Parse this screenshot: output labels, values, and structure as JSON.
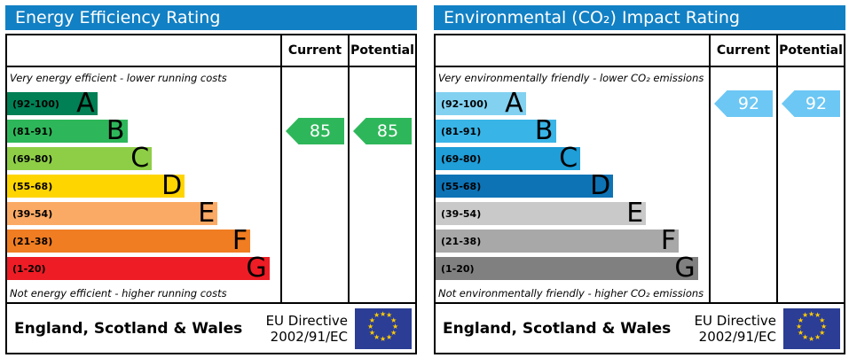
{
  "eu_flag": {
    "star_glyph": "★",
    "blue": "#2b3d94",
    "star_color": "#ffcc00"
  },
  "panels": [
    {
      "title": "Energy Efficiency Rating",
      "title_bg": "#1280c4",
      "columns": {
        "current": "Current",
        "potential": "Potential"
      },
      "top_note": "Very energy efficient - lower running costs",
      "bottom_note": "Not energy efficient - higher running costs",
      "bands": [
        {
          "range": "(92-100)",
          "letter": "A",
          "min": 92,
          "max": 100,
          "color": "#008054",
          "width_pct": 33
        },
        {
          "range": "(81-91)",
          "letter": "B",
          "min": 81,
          "max": 91,
          "color": "#2eb75a",
          "width_pct": 44
        },
        {
          "range": "(69-80)",
          "letter": "C",
          "min": 69,
          "max": 80,
          "color": "#8ece46",
          "width_pct": 53
        },
        {
          "range": "(55-68)",
          "letter": "D",
          "min": 55,
          "max": 68,
          "color": "#ffd500",
          "width_pct": 65
        },
        {
          "range": "(39-54)",
          "letter": "E",
          "min": 39,
          "max": 54,
          "color": "#fbaa65",
          "width_pct": 77
        },
        {
          "range": "(21-38)",
          "letter": "F",
          "min": 21,
          "max": 38,
          "color": "#f07d22",
          "width_pct": 89
        },
        {
          "range": "(1-20)",
          "letter": "G",
          "min": 1,
          "max": 20,
          "color": "#ee1c25",
          "width_pct": 96
        }
      ],
      "current": {
        "value": 85,
        "color": "#2eb75a"
      },
      "potential": {
        "value": 85,
        "color": "#2eb75a"
      },
      "footer": {
        "region": "England, Scotland & Wales",
        "directive_line1": "EU Directive",
        "directive_line2": "2002/91/EC"
      }
    },
    {
      "title": "Environmental (CO₂) Impact Rating",
      "title_bg": "#1280c4",
      "columns": {
        "current": "Current",
        "potential": "Potential"
      },
      "top_note": "Very environmentally friendly - lower CO₂ emissions",
      "bottom_note": "Not environmentally friendly - higher CO₂ emissions",
      "bands": [
        {
          "range": "(92-100)",
          "letter": "A",
          "min": 92,
          "max": 100,
          "color": "#82d1f1",
          "width_pct": 33
        },
        {
          "range": "(81-91)",
          "letter": "B",
          "min": 81,
          "max": 91,
          "color": "#39b4e6",
          "width_pct": 44
        },
        {
          "range": "(69-80)",
          "letter": "C",
          "min": 69,
          "max": 80,
          "color": "#1f9ed8",
          "width_pct": 53
        },
        {
          "range": "(55-68)",
          "letter": "D",
          "min": 55,
          "max": 68,
          "color": "#0d73b5",
          "width_pct": 65
        },
        {
          "range": "(39-54)",
          "letter": "E",
          "min": 39,
          "max": 54,
          "color": "#c9c9c9",
          "width_pct": 77
        },
        {
          "range": "(21-38)",
          "letter": "F",
          "min": 21,
          "max": 38,
          "color": "#a8a8a8",
          "width_pct": 89
        },
        {
          "range": "(1-20)",
          "letter": "G",
          "min": 1,
          "max": 20,
          "color": "#808080",
          "width_pct": 96
        }
      ],
      "current": {
        "value": 92,
        "color": "#6cc7f4"
      },
      "potential": {
        "value": 92,
        "color": "#6cc7f4"
      },
      "footer": {
        "region": "England, Scotland & Wales",
        "directive_line1": "EU Directive",
        "directive_line2": "2002/91/EC"
      }
    }
  ],
  "chart_data": [
    {
      "type": "bar",
      "title": "Energy Efficiency Rating",
      "categories": [
        "A (92-100)",
        "B (81-91)",
        "C (69-80)",
        "D (55-68)",
        "E (39-54)",
        "F (21-38)",
        "G (1-20)"
      ],
      "band_bar_length_pct": [
        33,
        44,
        53,
        65,
        77,
        89,
        96
      ],
      "series": [
        {
          "name": "Current",
          "values": [
            85
          ],
          "band": "B"
        },
        {
          "name": "Potential",
          "values": [
            85
          ],
          "band": "B"
        }
      ],
      "annotations": [
        "Very energy efficient - lower running costs",
        "Not energy efficient - higher running costs",
        "England, Scotland & Wales",
        "EU Directive 2002/91/EC"
      ],
      "xlabel": "",
      "ylabel": "",
      "legend_position": "table-columns-right",
      "grid": false
    },
    {
      "type": "bar",
      "title": "Environmental (CO₂) Impact Rating",
      "categories": [
        "A (92-100)",
        "B (81-91)",
        "C (69-80)",
        "D (55-68)",
        "E (39-54)",
        "F (21-38)",
        "G (1-20)"
      ],
      "band_bar_length_pct": [
        33,
        44,
        53,
        65,
        77,
        89,
        96
      ],
      "series": [
        {
          "name": "Current",
          "values": [
            92
          ],
          "band": "A"
        },
        {
          "name": "Potential",
          "values": [
            92
          ],
          "band": "A"
        }
      ],
      "annotations": [
        "Very environmentally friendly - lower CO₂ emissions",
        "Not environmentally friendly - higher CO₂ emissions",
        "England, Scotland & Wales",
        "EU Directive 2002/91/EC"
      ],
      "xlabel": "",
      "ylabel": "",
      "legend_position": "table-columns-right",
      "grid": false
    }
  ]
}
